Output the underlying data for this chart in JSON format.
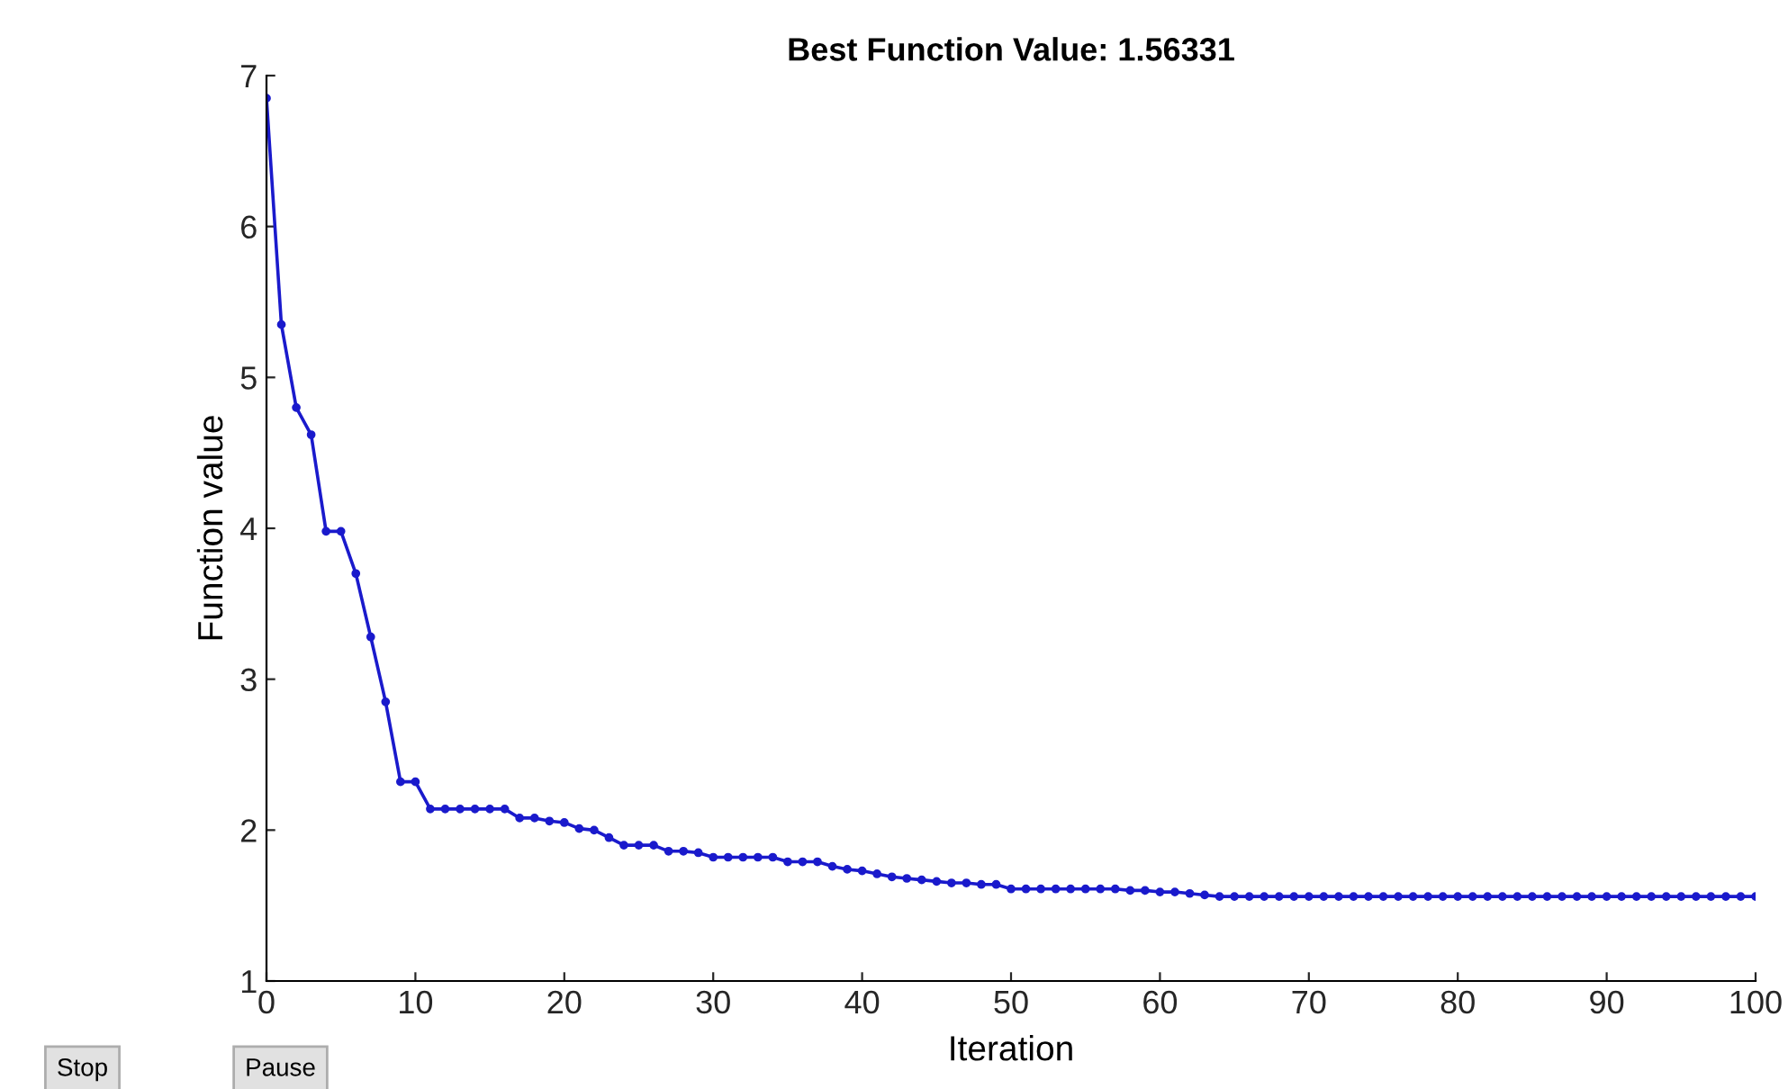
{
  "chart_data": {
    "type": "line",
    "title": "Best Function Value: 1.56331",
    "xlabel": "Iteration",
    "ylabel": "Function value",
    "x": [
      0,
      1,
      2,
      3,
      4,
      5,
      6,
      7,
      8,
      9,
      10,
      11,
      12,
      13,
      14,
      15,
      16,
      17,
      18,
      19,
      20,
      21,
      22,
      23,
      24,
      25,
      26,
      27,
      28,
      29,
      30,
      31,
      32,
      33,
      34,
      35,
      36,
      37,
      38,
      39,
      40,
      41,
      42,
      43,
      44,
      45,
      46,
      47,
      48,
      49,
      50,
      51,
      52,
      53,
      54,
      55,
      56,
      57,
      58,
      59,
      60,
      61,
      62,
      63,
      64,
      65,
      66,
      67,
      68,
      69,
      70,
      71,
      72,
      73,
      74,
      75,
      76,
      77,
      78,
      79,
      80,
      81,
      82,
      83,
      84,
      85,
      86,
      87,
      88,
      89,
      90,
      91,
      92,
      93,
      94,
      95,
      96,
      97,
      98,
      99,
      100
    ],
    "series": [
      {
        "color": "#1a1acc",
        "values": [
          6.85,
          5.35,
          4.8,
          4.62,
          3.98,
          3.98,
          3.7,
          3.28,
          2.85,
          2.32,
          2.32,
          2.14,
          2.14,
          2.14,
          2.14,
          2.14,
          2.14,
          2.08,
          2.08,
          2.06,
          2.05,
          2.01,
          2.0,
          1.95,
          1.9,
          1.9,
          1.9,
          1.86,
          1.86,
          1.85,
          1.82,
          1.82,
          1.82,
          1.82,
          1.82,
          1.79,
          1.79,
          1.79,
          1.76,
          1.74,
          1.73,
          1.71,
          1.69,
          1.68,
          1.67,
          1.66,
          1.65,
          1.65,
          1.64,
          1.64,
          1.61,
          1.61,
          1.61,
          1.61,
          1.61,
          1.61,
          1.61,
          1.61,
          1.6,
          1.6,
          1.59,
          1.59,
          1.58,
          1.57,
          1.56,
          1.56,
          1.56,
          1.56,
          1.56,
          1.56,
          1.56,
          1.56,
          1.56,
          1.56,
          1.56,
          1.56,
          1.56,
          1.56,
          1.56,
          1.56,
          1.56,
          1.56,
          1.56,
          1.56,
          1.56,
          1.56,
          1.56,
          1.56,
          1.56,
          1.56,
          1.56,
          1.56,
          1.56,
          1.56,
          1.56,
          1.56,
          1.56,
          1.56,
          1.56,
          1.56,
          1.56
        ]
      }
    ],
    "xlim": [
      0,
      100
    ],
    "ylim": [
      1,
      7
    ],
    "xticks": [
      0,
      10,
      20,
      30,
      40,
      50,
      60,
      70,
      80,
      90,
      100
    ],
    "yticks": [
      1,
      2,
      3,
      4,
      5,
      6,
      7
    ],
    "marker": "circle",
    "line_style": "solid",
    "grid": false,
    "legend": false,
    "annotations": [
      "Stop",
      "Pause"
    ]
  }
}
